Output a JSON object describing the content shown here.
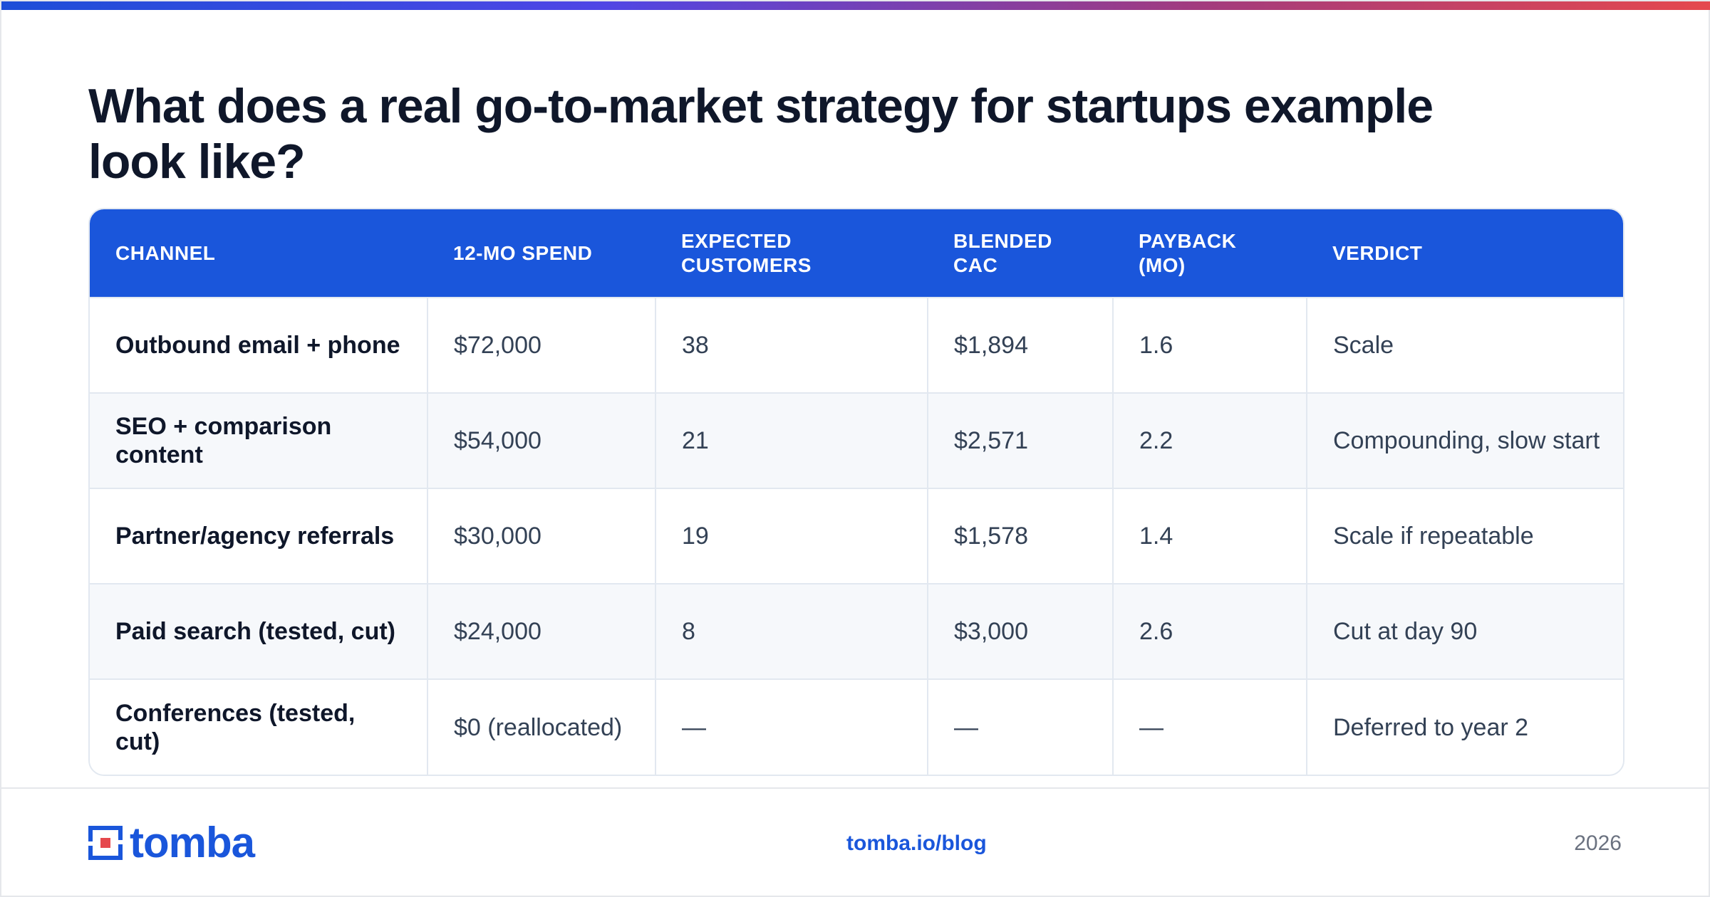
{
  "title": "What does a real go-to-market strategy for startups example look like?",
  "table": {
    "headers": [
      "CHANNEL",
      "12-MO SPEND",
      "EXPECTED CUSTOMERS",
      "BLENDED CAC",
      "PAYBACK (MO)",
      "VERDICT"
    ],
    "rows": [
      [
        "Outbound email + phone",
        "$72,000",
        "38",
        "$1,894",
        "1.6",
        "Scale"
      ],
      [
        "SEO + comparison content",
        "$54,000",
        "21",
        "$2,571",
        "2.2",
        "Compounding, slow start"
      ],
      [
        "Partner/agency referrals",
        "$30,000",
        "19",
        "$1,578",
        "1.4",
        "Scale if repeatable"
      ],
      [
        "Paid search (tested, cut)",
        "$24,000",
        "8",
        "$3,000",
        "2.6",
        "Cut at day 90"
      ],
      [
        "Conferences (tested, cut)",
        "$0 (reallocated)",
        "—",
        "—",
        "—",
        "Deferred to year 2"
      ]
    ]
  },
  "footer": {
    "logo_text": "tomba",
    "link": "tomba.io/blog",
    "year": "2026"
  },
  "colors": {
    "accent": "#1a56db",
    "header_bg": "#1a56db",
    "stripe": "#f6f8fb",
    "title": "#0f172a"
  }
}
